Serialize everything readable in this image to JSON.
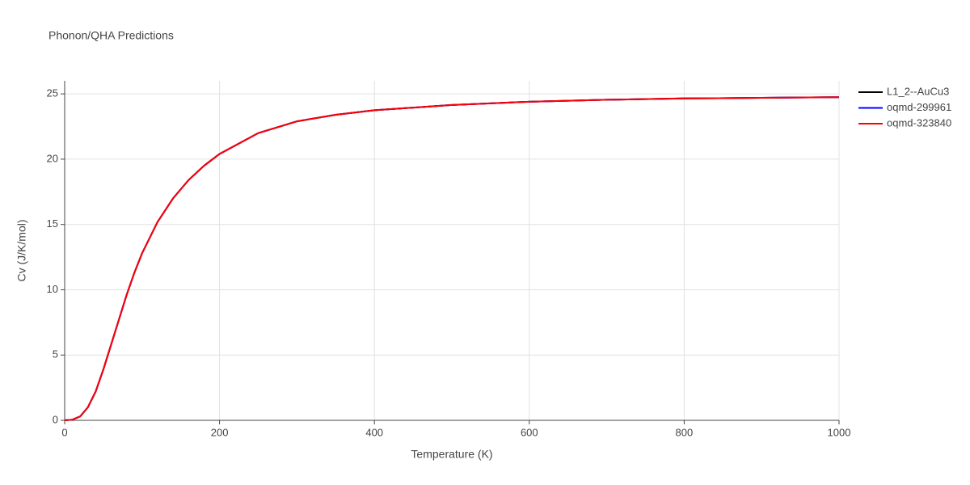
{
  "chart_data": {
    "type": "line",
    "title": "Phonon/QHA Predictions",
    "xlabel": "Temperature (K)",
    "ylabel": "Cv (J/K/mol)",
    "x": [
      0,
      10,
      20,
      30,
      40,
      50,
      60,
      70,
      80,
      90,
      100,
      120,
      140,
      160,
      180,
      200,
      250,
      300,
      350,
      400,
      500,
      600,
      700,
      800,
      900,
      1000
    ],
    "series": [
      {
        "name": "L1_2--AuCu3",
        "color": "#000000",
        "values": [
          0,
          0.05,
          0.3,
          1.0,
          2.2,
          3.9,
          5.8,
          7.7,
          9.6,
          11.3,
          12.8,
          15.2,
          17.0,
          18.4,
          19.5,
          20.4,
          22.0,
          22.9,
          23.4,
          23.75,
          24.15,
          24.4,
          24.55,
          24.65,
          24.7,
          24.75
        ]
      },
      {
        "name": "oqmd-299961",
        "color": "#0000ff",
        "values": [
          0,
          0.05,
          0.3,
          1.0,
          2.2,
          3.9,
          5.8,
          7.7,
          9.6,
          11.3,
          12.8,
          15.2,
          17.0,
          18.4,
          19.5,
          20.4,
          22.0,
          22.9,
          23.4,
          23.75,
          24.15,
          24.4,
          24.55,
          24.65,
          24.7,
          24.75
        ]
      },
      {
        "name": "oqmd-323840",
        "color": "#ff0000",
        "values": [
          0,
          0.05,
          0.3,
          1.0,
          2.2,
          3.9,
          5.8,
          7.7,
          9.6,
          11.3,
          12.8,
          15.2,
          17.0,
          18.4,
          19.5,
          20.4,
          22.0,
          22.9,
          23.4,
          23.75,
          24.15,
          24.4,
          24.55,
          24.65,
          24.7,
          24.75
        ]
      }
    ],
    "xlim": [
      0,
      1000
    ],
    "xticks": [
      0,
      200,
      400,
      600,
      800,
      1000
    ],
    "ylim": [
      0,
      26
    ],
    "yticks": [
      0,
      5,
      10,
      15,
      20,
      25
    ],
    "grid": true,
    "legend": "right"
  }
}
